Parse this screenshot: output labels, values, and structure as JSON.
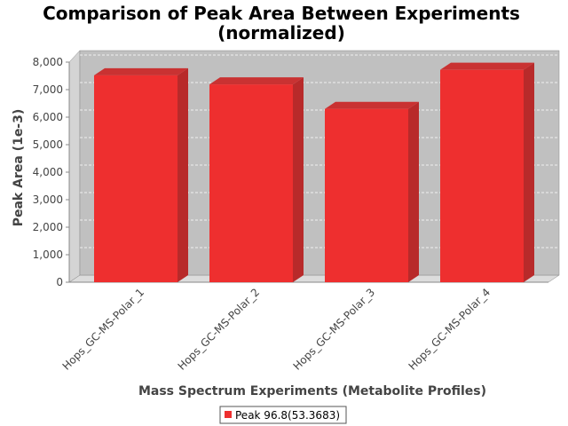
{
  "chart_data": {
    "type": "bar",
    "title": "Comparison of Peak Area Between Experiments",
    "subtitle": "(normalized)",
    "xlabel": "Mass Spectrum Experiments (Metabolite Profiles)",
    "ylabel": "Peak Area (1e-3)",
    "categories": [
      "Hops_GC-MS-Polar_1",
      "Hops_GC-MS-Polar_2",
      "Hops_GC-MS-Polar_3",
      "Hops_GC-MS-Polar_4"
    ],
    "series": [
      {
        "name": "Peak 96.8(53.3683)",
        "values": [
          7520,
          7190,
          6300,
          7720
        ],
        "color": "#ee2f2f"
      }
    ],
    "ylim": [
      0,
      8000
    ],
    "yticks": [
      0,
      1000,
      2000,
      3000,
      4000,
      5000,
      6000,
      7000,
      8000
    ],
    "ytick_labels": [
      "0",
      "1,000",
      "2,000",
      "3,000",
      "4,000",
      "5,000",
      "6,000",
      "7,000",
      "8,000"
    ],
    "grid": true,
    "legend_position": "bottom",
    "plot_background": "#c0c0c0",
    "bar_style": "3d"
  }
}
